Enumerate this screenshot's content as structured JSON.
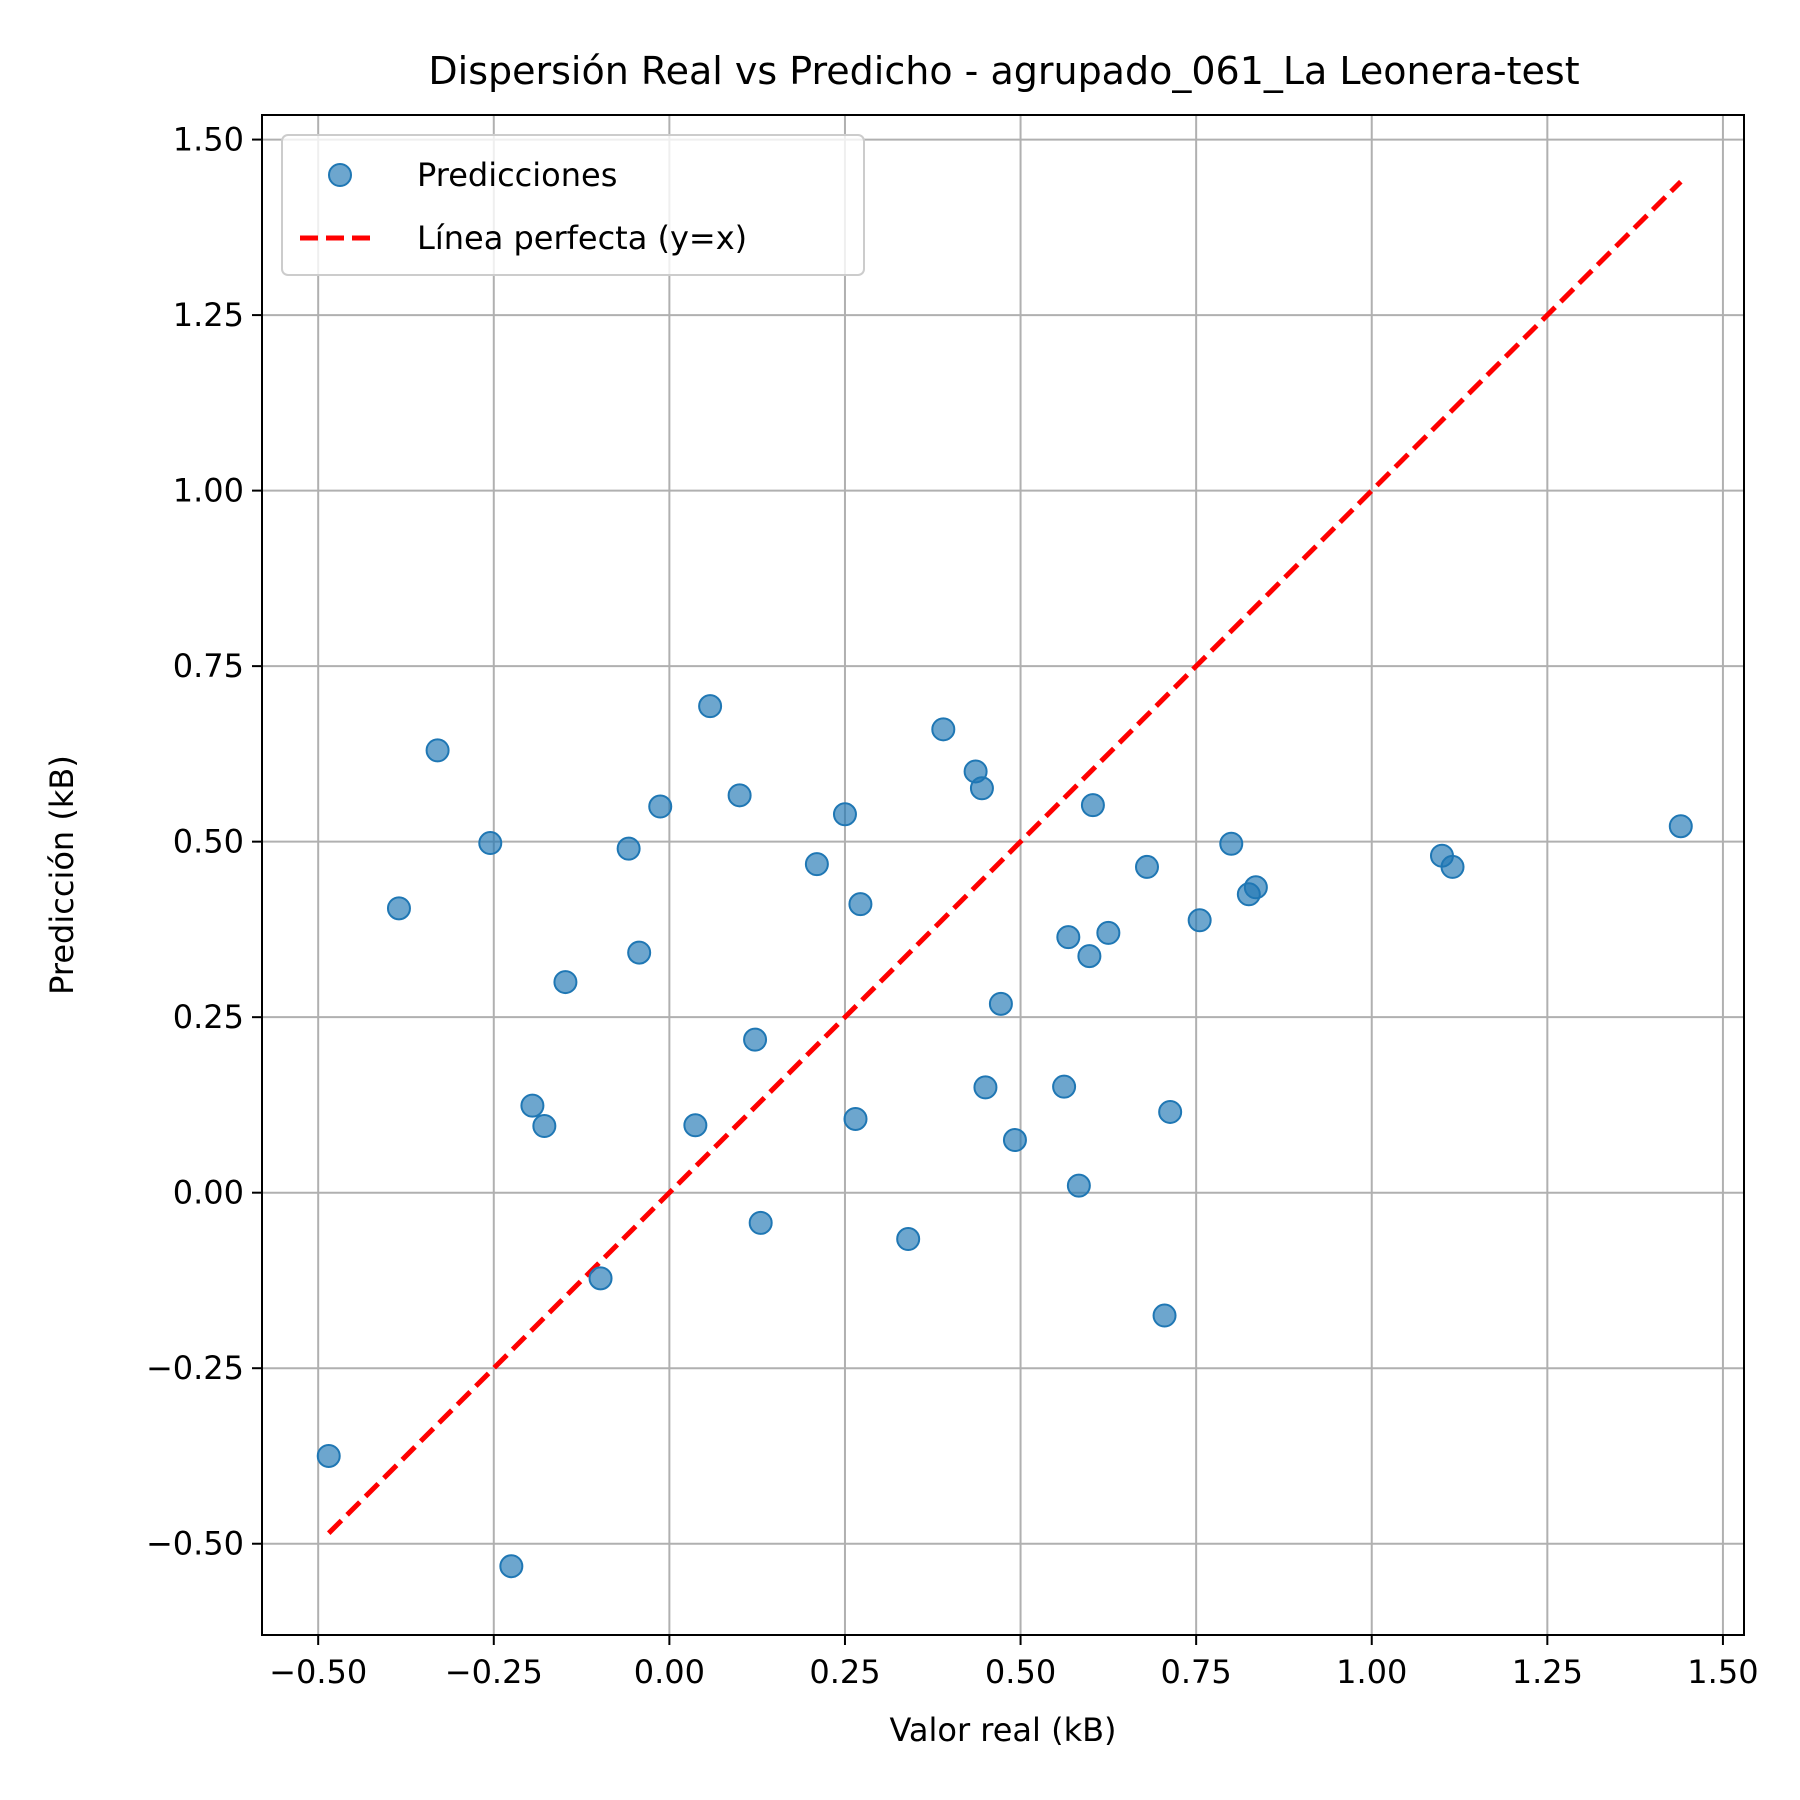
{
  "chart_data": {
    "type": "scatter",
    "title": "Dispersión Real vs Predicho - agrupado_061_La Leonera-test",
    "xlabel": "Valor real (kB)",
    "ylabel": "Predicción (kB)",
    "xlim": [
      -0.58,
      1.53
    ],
    "ylim": [
      -0.63,
      1.535
    ],
    "xticks": [
      -0.5,
      -0.25,
      0.0,
      0.25,
      0.5,
      0.75,
      1.0,
      1.25,
      1.5
    ],
    "yticks": [
      -0.5,
      -0.25,
      0.0,
      0.25,
      0.5,
      0.75,
      1.0,
      1.25,
      1.5
    ],
    "xtick_labels": [
      "−0.50",
      "−0.25",
      "0.00",
      "0.25",
      "0.50",
      "0.75",
      "1.00",
      "1.25",
      "1.50"
    ],
    "ytick_labels": [
      "−0.50",
      "−0.25",
      "0.00",
      "0.25",
      "0.50",
      "0.75",
      "1.00",
      "1.25",
      "1.50"
    ],
    "grid": true,
    "legend_position": "top-left",
    "series": [
      {
        "name": "Predicciones",
        "kind": "scatter",
        "color": "#1f77b4",
        "points": [
          [
            -0.485,
            -0.375
          ],
          [
            -0.225,
            -0.532
          ],
          [
            -0.385,
            0.405
          ],
          [
            -0.33,
            0.63
          ],
          [
            -0.255,
            0.498
          ],
          [
            -0.195,
            0.124
          ],
          [
            -0.178,
            0.095
          ],
          [
            -0.148,
            0.3
          ],
          [
            -0.098,
            -0.122
          ],
          [
            -0.058,
            0.49
          ],
          [
            -0.043,
            0.342
          ],
          [
            -0.013,
            0.55
          ],
          [
            0.037,
            0.096
          ],
          [
            0.058,
            0.693
          ],
          [
            0.1,
            0.566
          ],
          [
            0.122,
            0.218
          ],
          [
            0.13,
            -0.043
          ],
          [
            0.21,
            0.468
          ],
          [
            0.25,
            0.539
          ],
          [
            0.265,
            0.105
          ],
          [
            0.272,
            0.411
          ],
          [
            0.34,
            -0.066
          ],
          [
            0.39,
            0.66
          ],
          [
            0.436,
            0.6
          ],
          [
            0.445,
            0.576
          ],
          [
            0.45,
            0.15
          ],
          [
            0.472,
            0.269
          ],
          [
            0.492,
            0.075
          ],
          [
            0.562,
            0.151
          ],
          [
            0.568,
            0.364
          ],
          [
            0.583,
            0.01
          ],
          [
            0.598,
            0.337
          ],
          [
            0.603,
            0.552
          ],
          [
            0.625,
            0.37
          ],
          [
            0.68,
            0.464
          ],
          [
            0.705,
            -0.175
          ],
          [
            0.713,
            0.115
          ],
          [
            0.755,
            0.388
          ],
          [
            0.8,
            0.497
          ],
          [
            0.825,
            0.425
          ],
          [
            0.835,
            0.435
          ],
          [
            1.1,
            0.48
          ],
          [
            1.115,
            0.464
          ],
          [
            1.44,
            0.522
          ]
        ]
      },
      {
        "name": "Línea perfecta (y=x)",
        "kind": "line",
        "style": "dashed",
        "color": "#ff0000",
        "x": [
          -0.485,
          1.44
        ],
        "y": [
          -0.485,
          1.44
        ]
      }
    ]
  }
}
